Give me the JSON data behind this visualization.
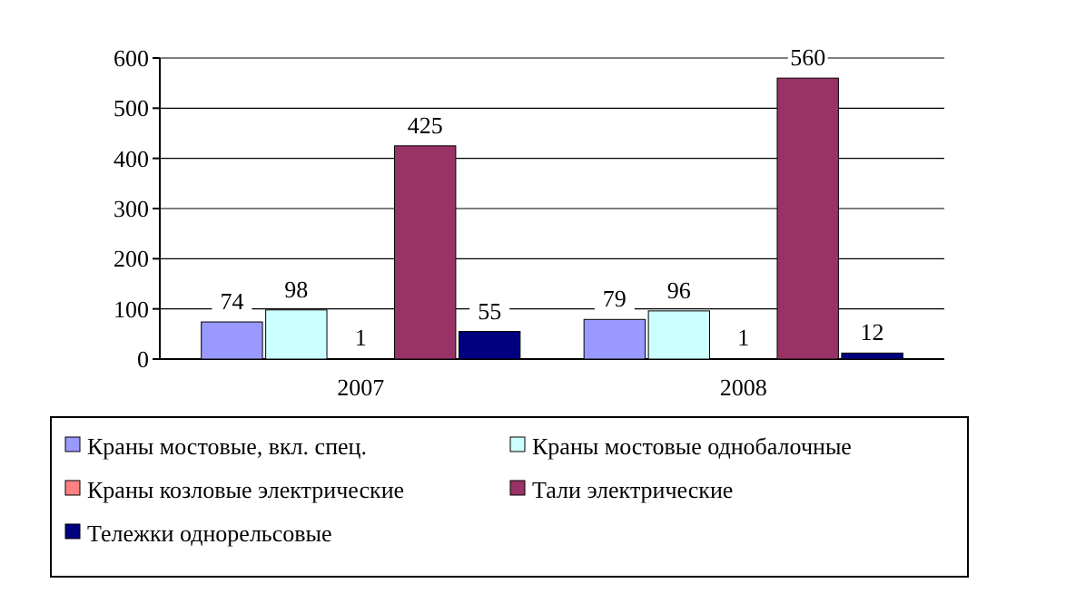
{
  "chart_data": {
    "type": "bar",
    "categories": [
      "2007",
      "2008"
    ],
    "series": [
      {
        "name": "Краны мостовые, вкл. спец.",
        "color": "#9999ff",
        "values": [
          74,
          79
        ]
      },
      {
        "name": "Краны мостовые однобалочные",
        "color": "#ccffff",
        "values": [
          98,
          96
        ]
      },
      {
        "name": "Краны козловые электрические",
        "color": "#ff8080",
        "values": [
          1,
          1
        ]
      },
      {
        "name": "Тали электрические",
        "color": "#993366",
        "values": [
          425,
          560
        ]
      },
      {
        "name": "Тележки однорельсовые",
        "color": "#000080",
        "values": [
          55,
          12
        ]
      }
    ],
    "ylim": [
      0,
      600
    ],
    "yticks": [
      0,
      100,
      200,
      300,
      400,
      500,
      600
    ],
    "grid": "y",
    "data_labels": true,
    "legend": "bottom"
  }
}
